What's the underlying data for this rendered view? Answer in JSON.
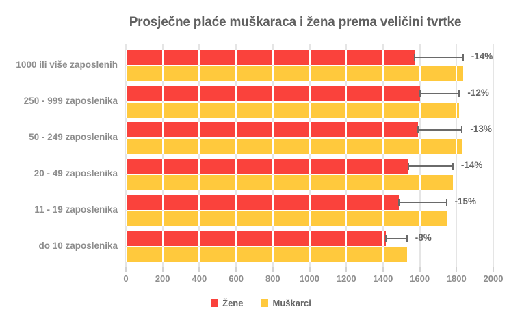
{
  "title": "Prosječne plaće muškaraca i žena prema veličini tvrtke",
  "chart_data": {
    "type": "bar",
    "orientation": "horizontal",
    "title": "Prosječne plaće muškaraca i žena prema veličini tvrtke",
    "categories": [
      "1000 ili više zaposlenih",
      "250 - 999 zaposlenika",
      "50 - 249 zaposlenika",
      "20 - 49 zaposlenika",
      "11 - 19 zaposlenika",
      "do 10 zaposlenika"
    ],
    "series": [
      {
        "name": "Žene",
        "color": "#FA423C",
        "values": [
          1570,
          1600,
          1590,
          1540,
          1485,
          1415
        ]
      },
      {
        "name": "Muškarci",
        "color": "#FFC93D",
        "values": [
          1835,
          1815,
          1830,
          1780,
          1745,
          1530
        ]
      }
    ],
    "gap_labels": [
      "-14%",
      "-12%",
      "-13%",
      "-14%",
      "-15%",
      "-8%"
    ],
    "x_ticks": [
      "0",
      "200",
      "400",
      "600",
      "800",
      "1000",
      "1200",
      "1400",
      "1600",
      "1800",
      "2000"
    ],
    "xlim": [
      0,
      2000
    ],
    "grid": "vertical",
    "legend_position": "bottom"
  },
  "colors": {
    "background": "#ffffff",
    "women_bar": "#FA423C",
    "men_bar": "#FFC93D",
    "gridline": "#e5e5e5",
    "tick": "#d2d2d2",
    "title_text": "#606060",
    "axis_text": "#8d8d8d",
    "gap_text": "#666666",
    "errorbar": "#6a6a6a"
  }
}
